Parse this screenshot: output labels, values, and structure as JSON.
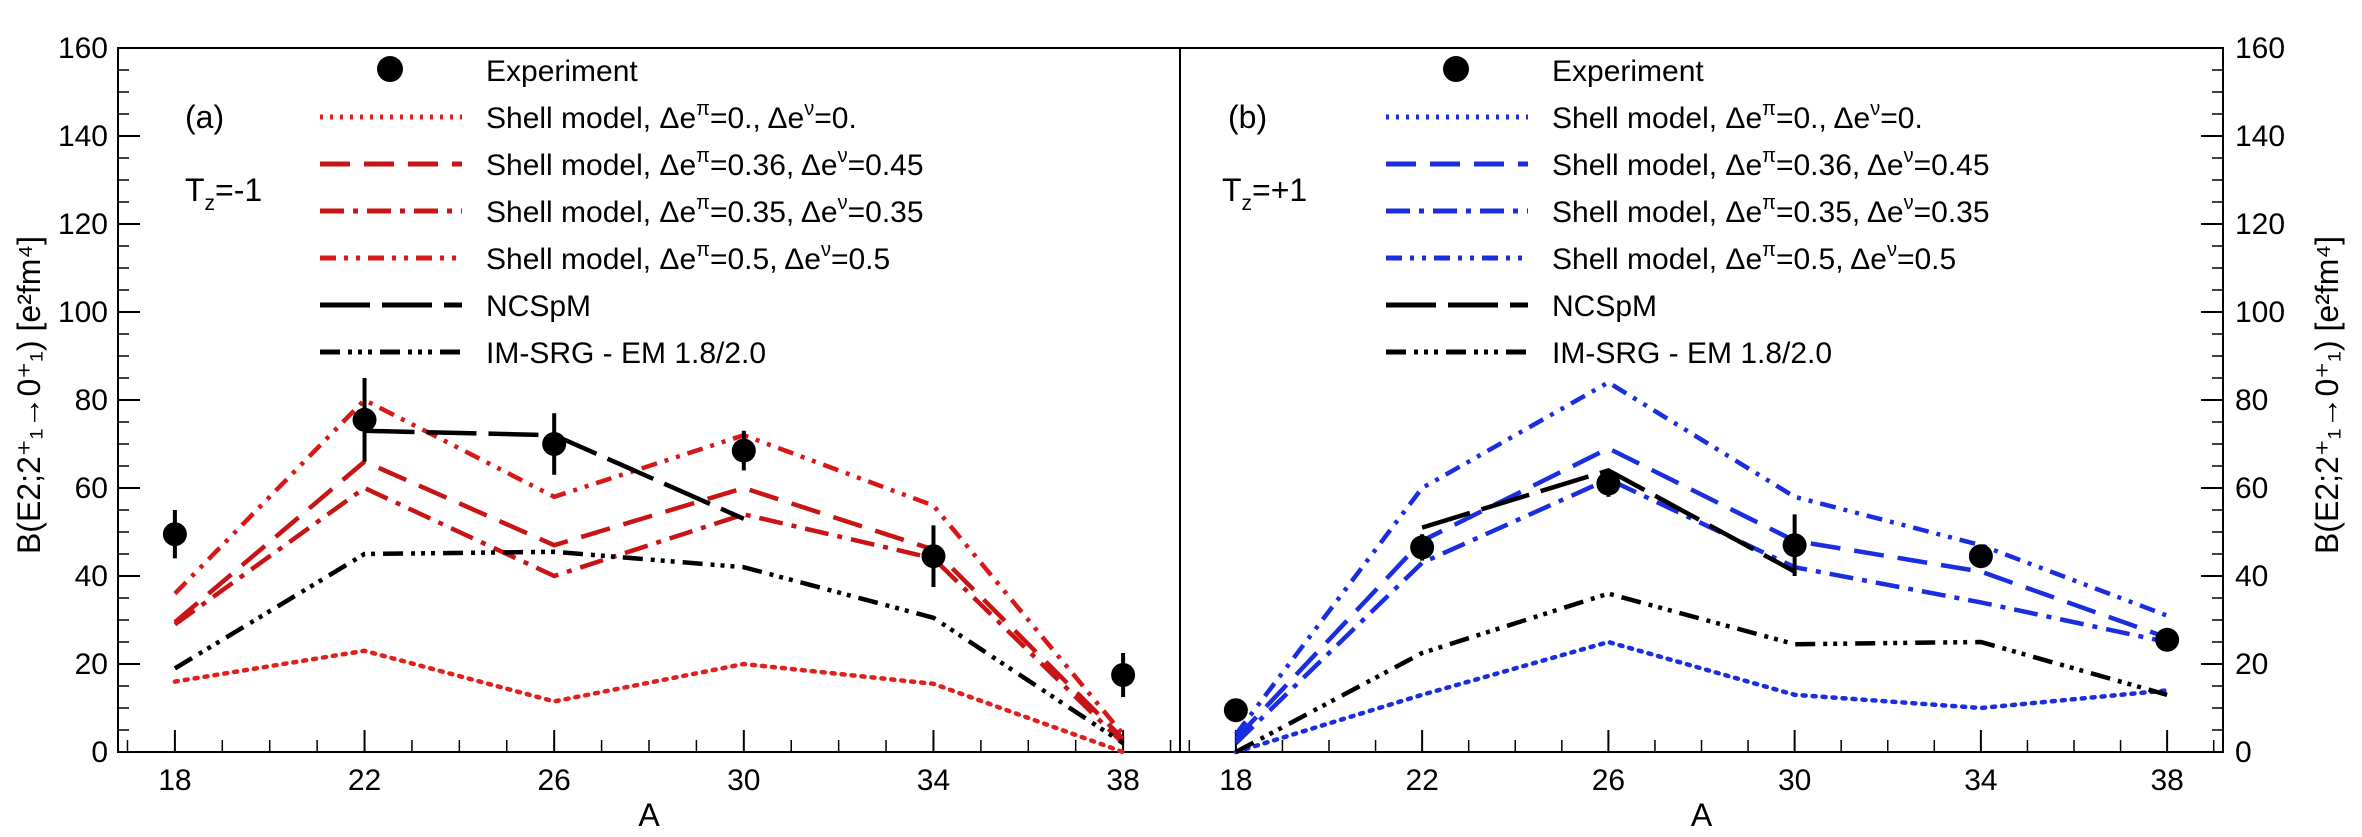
{
  "ylabel": "B(E2;2⁺₁→0⁺₁) [e²fm⁴]",
  "chart_data": [
    {
      "type": "line",
      "panel_label": "(a)",
      "tz_label": "T",
      "tz_sub": "z",
      "tz_value": "=-1",
      "xlabel": "A",
      "xlim": [
        16.8,
        39.2
      ],
      "ylim": [
        0,
        160
      ],
      "xticks": [
        18,
        22,
        26,
        30,
        34,
        38
      ],
      "yticks": [
        0,
        20,
        40,
        60,
        80,
        100,
        120,
        140,
        160
      ],
      "series": [
        {
          "name": "Experiment",
          "kind": "points",
          "color": "#000000",
          "x": [
            18,
            22,
            26,
            30,
            34,
            38
          ],
          "y": [
            49.5,
            75.5,
            70.0,
            68.5,
            44.5,
            17.5
          ],
          "err": [
            5.5,
            9.5,
            7.0,
            4.5,
            7.0,
            5.0
          ]
        },
        {
          "name": "Shell model, Δeπ=0., Δeν=0.",
          "legend_main": "Shell model, Δe",
          "legend_p1": "=0., Δe",
          "legend_p2": "=0.",
          "dash": "dot",
          "color": "#e0201d",
          "x": [
            18,
            22,
            26,
            30,
            34,
            38
          ],
          "y": [
            16,
            23,
            11.5,
            20,
            15.5,
            0
          ]
        },
        {
          "name": "Shell model, Δeπ=0.36, Δeν=0.45",
          "legend_main": "Shell model, Δe",
          "legend_p1": "=0.36, Δe",
          "legend_p2": "=0.45",
          "dash": "dash",
          "color": "#c81414",
          "x": [
            18,
            22,
            26,
            30,
            34,
            38
          ],
          "y": [
            29.5,
            66,
            47,
            60,
            46,
            3
          ]
        },
        {
          "name": "Shell model, Δeπ=0.35, Δeν=0.35",
          "legend_main": "Shell model, Δe",
          "legend_p1": "=0.35, Δe",
          "legend_p2": "=0.35",
          "dash": "dashdot",
          "color": "#c81414",
          "x": [
            18,
            22,
            26,
            30,
            34,
            38
          ],
          "y": [
            29,
            60,
            40,
            54,
            44,
            2
          ]
        },
        {
          "name": "Shell model, Δeπ=0.5, Δeν=0.5",
          "legend_main": "Shell model, Δe",
          "legend_p1": "=0.5, Δe",
          "legend_p2": "=0.5",
          "dash": "dashdotdot",
          "color": "#d81818",
          "x": [
            18,
            22,
            26,
            30,
            34,
            38
          ],
          "y": [
            36,
            80,
            58,
            72,
            56,
            4
          ]
        },
        {
          "name": "NCSpM",
          "dash": "longdash",
          "color": "#000000",
          "x": [
            22,
            26,
            30
          ],
          "y": [
            73,
            72,
            53
          ]
        },
        {
          "name": "IM-SRG - EM 1.8/2.0",
          "dash": "imsrg",
          "color": "#000000",
          "x": [
            18,
            22,
            26,
            30,
            34,
            38
          ],
          "y": [
            19,
            45,
            45.5,
            42,
            30.5,
            2
          ]
        }
      ]
    },
    {
      "type": "line",
      "panel_label": "(b)",
      "tz_label": "T",
      "tz_sub": "z",
      "tz_value": "=+1",
      "xlabel": "A",
      "xlim": [
        16.8,
        39.2
      ],
      "ylim": [
        0,
        160
      ],
      "xticks": [
        18,
        22,
        26,
        30,
        34,
        38
      ],
      "yticks": [
        0,
        20,
        40,
        60,
        80,
        100,
        120,
        140,
        160
      ],
      "series": [
        {
          "name": "Experiment",
          "kind": "points",
          "color": "#000000",
          "x": [
            18,
            22,
            26,
            30,
            34,
            38
          ],
          "y": [
            9.5,
            46.5,
            61,
            47,
            44.5,
            25.5
          ],
          "err": [
            1.5,
            3,
            3,
            7,
            1.5,
            1.5
          ]
        },
        {
          "name": "Shell model, Δeπ=0., Δeν=0.",
          "legend_main": "Shell model, Δe",
          "legend_p1": "=0., Δe",
          "legend_p2": "=0.",
          "dash": "dot",
          "color": "#1a2ee0",
          "x": [
            18,
            22,
            26,
            30,
            34,
            38
          ],
          "y": [
            0,
            13,
            25,
            13,
            10,
            14
          ]
        },
        {
          "name": "Shell model, Δeπ=0.36, Δeν=0.45",
          "legend_main": "Shell model, Δe",
          "legend_p1": "=0.36, Δe",
          "legend_p2": "=0.45",
          "dash": "dash",
          "color": "#1a2ee0",
          "x": [
            18,
            22,
            26,
            30,
            34,
            38
          ],
          "y": [
            3,
            48,
            69,
            48,
            41,
            26
          ]
        },
        {
          "name": "Shell model, Δeπ=0.35, Δeν=0.35",
          "legend_main": "Shell model, Δe",
          "legend_p1": "=0.35, Δe",
          "legend_p2": "=0.35",
          "dash": "dashdot",
          "color": "#1a2ee0",
          "x": [
            18,
            22,
            26,
            30,
            34,
            38
          ],
          "y": [
            2,
            43,
            62,
            42,
            34,
            25
          ]
        },
        {
          "name": "Shell model, Δeπ=0.5, Δeν=0.5",
          "legend_main": "Shell model, Δe",
          "legend_p1": "=0.5, Δe",
          "legend_p2": "=0.5",
          "dash": "dashdotdot",
          "color": "#1a2ee0",
          "x": [
            18,
            22,
            26,
            30,
            34,
            38
          ],
          "y": [
            4,
            60,
            84,
            58,
            47,
            31
          ]
        },
        {
          "name": "NCSpM",
          "dash": "longdash",
          "color": "#000000",
          "x": [
            22,
            26,
            30
          ],
          "y": [
            51,
            64,
            41
          ]
        },
        {
          "name": "IM-SRG - EM 1.8/2.0",
          "dash": "imsrg",
          "color": "#000000",
          "x": [
            18,
            22,
            26,
            30,
            34,
            38
          ],
          "y": [
            0,
            22.5,
            36,
            24.5,
            25,
            13
          ]
        }
      ]
    }
  ]
}
